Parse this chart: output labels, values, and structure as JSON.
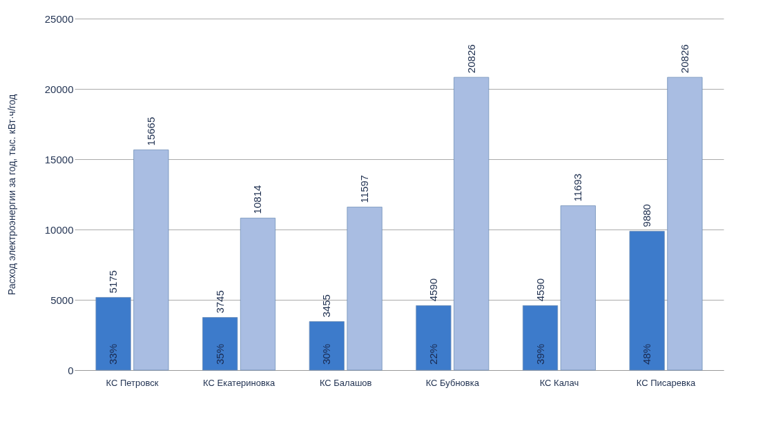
{
  "chart_data": {
    "type": "bar",
    "ylabel": "Расход электроэнергии за год, тыс. кВт·ч/год",
    "categories": [
      "КС Петровск",
      "КС Екатериновка",
      "КС Балашов",
      "КС Бубновка",
      "КС Калач",
      "КС Писаревка"
    ],
    "series": [
      {
        "color": "#3d7bcb",
        "values": [
          5175,
          3745,
          3455,
          4590,
          4590,
          9880
        ]
      },
      {
        "color": "#a9bde2",
        "values": [
          15665,
          10814,
          11597,
          20826,
          11693,
          20826
        ]
      }
    ],
    "ylim": [
      0,
      25000
    ],
    "yticks": [
      0,
      5000,
      10000,
      15000,
      20000,
      25000
    ],
    "grid": "y",
    "legend": false,
    "data_labels": true,
    "annotations": [
      {
        "text": "33%",
        "x": "КС Петровск",
        "y": 0
      },
      {
        "text": "35%",
        "x": "КС Екатериновка",
        "y": 0
      },
      {
        "text": "30%",
        "x": "КС Балашов",
        "y": 0
      },
      {
        "text": "22%",
        "x": "КС Бубновка",
        "y": 0
      },
      {
        "text": "39%",
        "x": "КС Калач",
        "y": 0
      },
      {
        "text": "48%",
        "x": "КС Писаревка",
        "y": 0
      }
    ]
  }
}
